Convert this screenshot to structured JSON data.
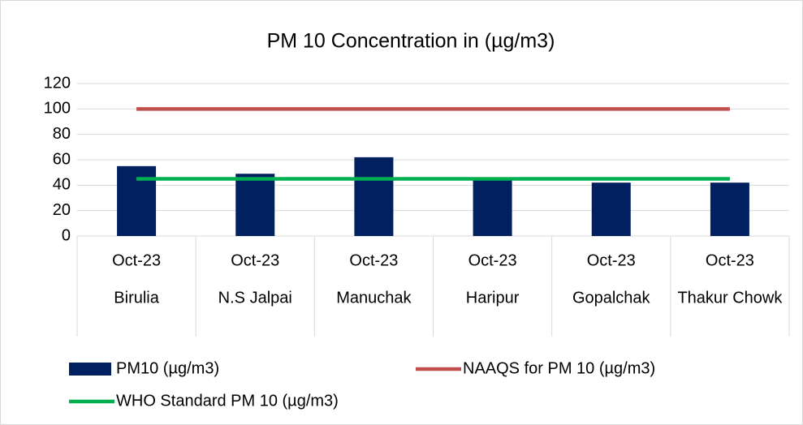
{
  "chart_data": {
    "type": "bar-line",
    "title": "PM 10 Concentration in (µg/m3)",
    "categories": [
      [
        "Oct-23",
        "Birulia"
      ],
      [
        "Oct-23",
        "N.S Jalpai"
      ],
      [
        "Oct-23",
        "Manuchak"
      ],
      [
        "Oct-23",
        "Haripur"
      ],
      [
        "Oct-23",
        "Gopalchak"
      ],
      [
        "Oct-23",
        "Thakur Chowk"
      ]
    ],
    "series": [
      {
        "name": "PM10 (µg/m3)",
        "type": "bar",
        "color": "#002060",
        "values": [
          55,
          49,
          62,
          45,
          42,
          42
        ]
      },
      {
        "name": "NAAQS for PM 10 (µg/m3)",
        "type": "line",
        "color": "#c0504d",
        "values": [
          100,
          100,
          100,
          100,
          100,
          100
        ]
      },
      {
        "name": "WHO Standard PM 10 (µg/m3)",
        "type": "line",
        "color": "#00b050",
        "values": [
          45,
          45,
          45,
          45,
          45,
          45
        ]
      }
    ],
    "ylim": [
      0,
      120
    ],
    "yticks": [
      0,
      20,
      40,
      60,
      80,
      100,
      120
    ],
    "grid": true,
    "legend": "bottom"
  }
}
